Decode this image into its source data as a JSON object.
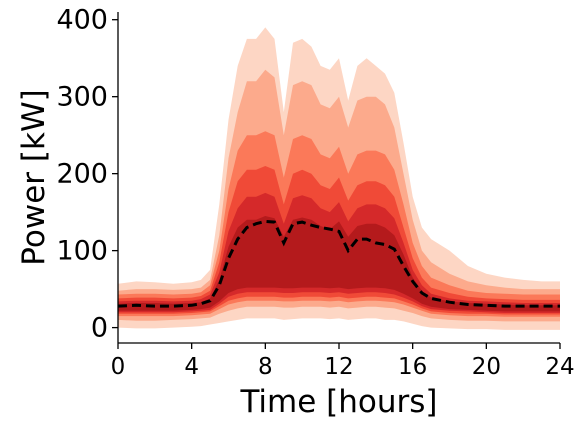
{
  "chart_data": {
    "type": "area",
    "xlabel": "Time [hours]",
    "ylabel": "Power [kW]",
    "xlim": [
      0,
      24
    ],
    "ylim": [
      -20,
      410
    ],
    "xticks": [
      0,
      4,
      8,
      12,
      16,
      20,
      24
    ],
    "yticks": [
      0,
      100,
      200,
      300,
      400
    ],
    "grid": false,
    "colors": [
      "#fdd6c4",
      "#fcaa8c",
      "#fb7959",
      "#f04a37",
      "#d5292a",
      "#b41a1c"
    ],
    "x": [
      0,
      1,
      2,
      3,
      4,
      4.5,
      5,
      5.5,
      6,
      6.5,
      7,
      7.5,
      8,
      8.5,
      9,
      9.5,
      10,
      10.5,
      11,
      11.5,
      12,
      12.5,
      13,
      13.5,
      14,
      14.5,
      15,
      15.5,
      16,
      16.5,
      17,
      18,
      19,
      20,
      21,
      22,
      23,
      24
    ],
    "bands": [
      {
        "lower": [
          0,
          -1,
          -1,
          0,
          1,
          2,
          4,
          6,
          8,
          10,
          12,
          12,
          12,
          12,
          10,
          11,
          12,
          12,
          12,
          11,
          12,
          10,
          11,
          12,
          12,
          10,
          10,
          8,
          5,
          2,
          0,
          -1,
          -2,
          -2,
          -3,
          -3,
          -3,
          -3
        ],
        "upper": [
          57,
          60,
          59,
          57,
          59,
          62,
          75,
          160,
          270,
          340,
          375,
          375,
          390,
          375,
          280,
          370,
          375,
          365,
          340,
          335,
          350,
          295,
          340,
          350,
          340,
          330,
          305,
          240,
          170,
          130,
          115,
          100,
          80,
          70,
          65,
          62,
          60,
          60
        ]
      },
      {
        "lower": [
          10,
          9,
          9,
          10,
          11,
          12,
          13,
          18,
          22,
          25,
          27,
          27,
          27,
          27,
          26,
          26,
          27,
          27,
          27,
          26,
          27,
          25,
          26,
          27,
          27,
          26,
          25,
          22,
          19,
          15,
          12,
          10,
          9,
          9,
          8,
          8,
          8,
          8
        ],
        "upper": [
          48,
          50,
          50,
          49,
          50,
          52,
          62,
          120,
          220,
          280,
          320,
          320,
          335,
          325,
          250,
          315,
          320,
          315,
          290,
          285,
          300,
          260,
          295,
          300,
          300,
          290,
          260,
          200,
          140,
          100,
          85,
          70,
          60,
          55,
          52,
          50,
          50,
          50
        ]
      },
      {
        "lower": [
          15,
          15,
          15,
          15,
          16,
          17,
          18,
          24,
          30,
          33,
          35,
          35,
          35,
          35,
          34,
          34,
          35,
          35,
          35,
          34,
          35,
          33,
          34,
          35,
          35,
          34,
          33,
          30,
          26,
          22,
          18,
          16,
          15,
          15,
          14,
          14,
          14,
          14
        ],
        "upper": [
          43,
          44,
          44,
          43,
          44,
          46,
          55,
          100,
          180,
          230,
          250,
          250,
          255,
          250,
          195,
          245,
          250,
          245,
          225,
          220,
          235,
          200,
          225,
          230,
          230,
          225,
          205,
          160,
          110,
          80,
          65,
          55,
          48,
          45,
          44,
          43,
          43,
          43
        ]
      },
      {
        "lower": [
          18,
          18,
          18,
          18,
          19,
          20,
          21,
          28,
          35,
          38,
          40,
          40,
          40,
          40,
          39,
          39,
          40,
          40,
          40,
          39,
          40,
          38,
          39,
          40,
          40,
          39,
          38,
          34,
          30,
          25,
          21,
          19,
          18,
          18,
          17,
          17,
          17,
          17
        ],
        "upper": [
          38,
          39,
          39,
          38,
          39,
          41,
          48,
          85,
          150,
          190,
          205,
          205,
          210,
          205,
          160,
          200,
          205,
          200,
          185,
          180,
          195,
          165,
          185,
          190,
          190,
          185,
          170,
          130,
          90,
          65,
          52,
          45,
          40,
          38,
          37,
          36,
          36,
          36
        ]
      },
      {
        "lower": [
          20,
          20,
          20,
          20,
          21,
          22,
          23,
          31,
          40,
          44,
          46,
          46,
          46,
          46,
          45,
          45,
          46,
          46,
          46,
          45,
          46,
          44,
          45,
          46,
          46,
          45,
          43,
          39,
          34,
          28,
          24,
          22,
          21,
          20,
          19,
          19,
          19,
          19
        ],
        "upper": [
          34,
          35,
          35,
          34,
          35,
          37,
          43,
          72,
          125,
          155,
          170,
          170,
          175,
          170,
          135,
          168,
          172,
          168,
          155,
          150,
          163,
          138,
          155,
          160,
          160,
          155,
          142,
          110,
          75,
          55,
          44,
          38,
          35,
          34,
          33,
          32,
          32,
          32
        ]
      },
      {
        "lower": [
          22,
          22,
          22,
          22,
          23,
          24,
          26,
          34,
          45,
          50,
          52,
          52,
          52,
          52,
          51,
          51,
          52,
          52,
          52,
          51,
          52,
          50,
          51,
          52,
          52,
          51,
          49,
          44,
          38,
          31,
          27,
          24,
          23,
          22,
          21,
          21,
          21,
          21
        ],
        "upper": [
          31,
          32,
          32,
          31,
          32,
          33,
          38,
          62,
          105,
          130,
          140,
          140,
          145,
          142,
          118,
          140,
          143,
          140,
          132,
          128,
          138,
          118,
          132,
          135,
          135,
          130,
          120,
          95,
          65,
          48,
          39,
          34,
          32,
          31,
          30,
          29,
          29,
          29
        ]
      }
    ],
    "series": [
      {
        "name": "",
        "style": "dashed",
        "color": "#000000",
        "values": [
          28,
          29,
          28,
          28,
          29,
          31,
          35,
          55,
          90,
          115,
          130,
          135,
          138,
          137,
          110,
          135,
          137,
          133,
          130,
          128,
          125,
          100,
          115,
          115,
          110,
          108,
          102,
          80,
          60,
          45,
          38,
          33,
          30,
          29,
          28,
          28,
          28,
          28
        ]
      }
    ]
  }
}
